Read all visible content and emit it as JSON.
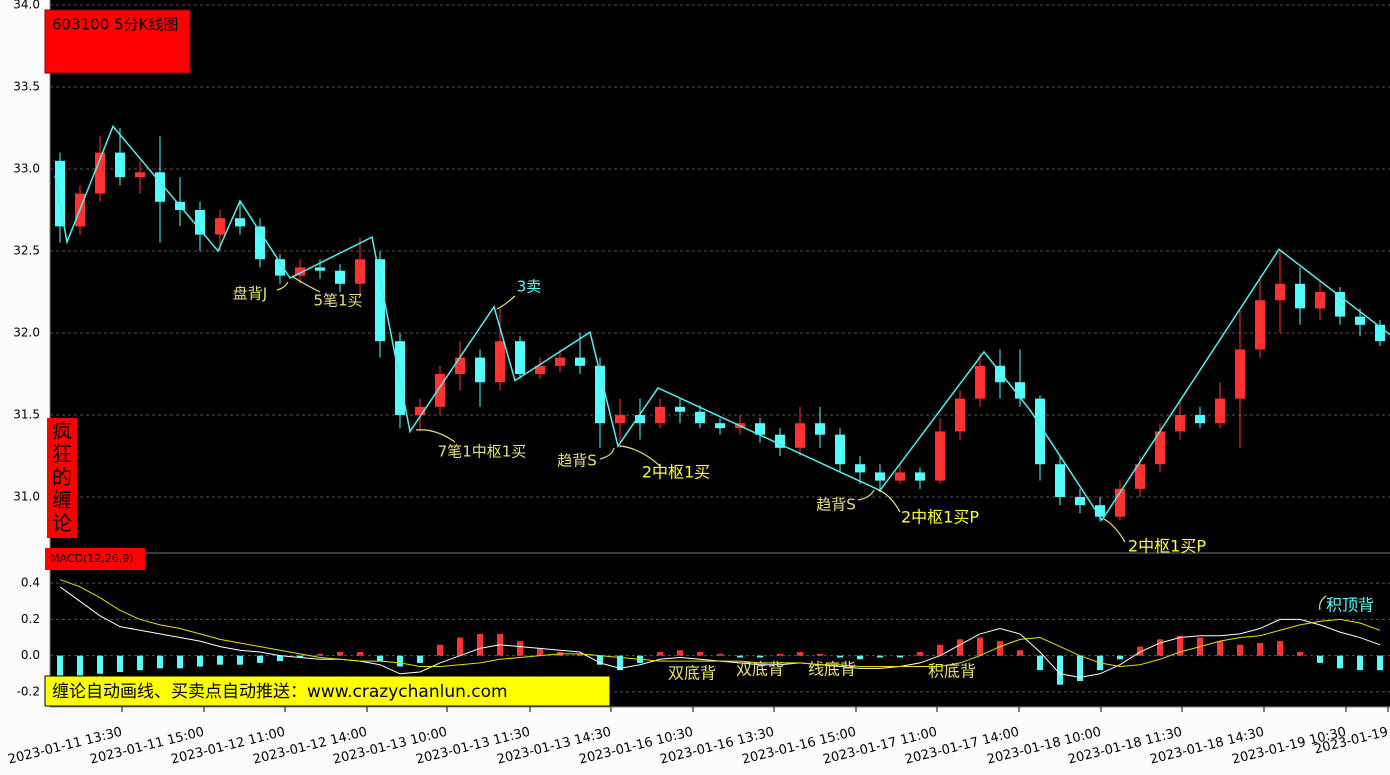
{
  "header": {
    "title": "603100 5分K线图",
    "side_label": "疯狂的缠论",
    "banner": "缠论自动画线、买卖点自动推送：www.crazychanlun.com"
  },
  "annotations": [
    "盘背J",
    "5笔1买",
    "3卖",
    "7笔1中枢1买",
    "趋背S",
    "2中枢1买",
    "趋背S",
    "2中枢1买P",
    "2中枢1买P",
    "双底背",
    "双底背",
    "线底背",
    "积底背",
    "积顶背"
  ],
  "chart_data": [
    {
      "type": "candlestick",
      "up_color": "#ff3232",
      "down_color": "#54fcfc",
      "grid": true,
      "xlim": [
        -0.5,
        66.5
      ],
      "ylim": [
        30.68,
        34.0
      ],
      "yticks": [
        {
          "value": 31,
          "label": "31.0"
        },
        31.5,
        {
          "value": 32,
          "label": "32.0"
        },
        32.5,
        {
          "value": 33,
          "label": "33.0"
        },
        33.5,
        {
          "value": 34,
          "label": "34.0"
        }
      ],
      "open": [
        33.05,
        32.65,
        32.85,
        33.1,
        32.95,
        32.98,
        32.8,
        32.75,
        32.6,
        32.7,
        32.65,
        32.45,
        32.35,
        32.4,
        32.38,
        32.3,
        32.45,
        31.95,
        31.5,
        31.55,
        31.75,
        31.85,
        31.7,
        31.95,
        31.75,
        31.8,
        31.85,
        31.8,
        31.45,
        31.5,
        31.45,
        31.55,
        31.52,
        31.45,
        31.42,
        31.45,
        31.38,
        31.3,
        31.45,
        31.38,
        31.2,
        31.15,
        31.1,
        31.15,
        31.1,
        31.4,
        31.6,
        31.8,
        31.7,
        31.6,
        31.2,
        31.0,
        30.95,
        30.88,
        31.05,
        31.2,
        31.4,
        31.5,
        31.45,
        31.6,
        31.9,
        32.2,
        32.3,
        32.15,
        32.25,
        32.1,
        32.05
      ],
      "high": [
        33.1,
        32.9,
        33.2,
        33.25,
        33.05,
        33.2,
        32.95,
        32.8,
        32.75,
        32.8,
        32.7,
        32.48,
        32.45,
        32.45,
        32.42,
        32.58,
        32.5,
        32.0,
        31.6,
        31.8,
        31.95,
        31.9,
        32.15,
        31.98,
        31.85,
        31.9,
        32.0,
        31.85,
        31.6,
        31.6,
        31.6,
        31.6,
        31.56,
        31.48,
        31.5,
        31.48,
        31.42,
        31.55,
        31.55,
        31.42,
        31.25,
        31.2,
        31.2,
        31.18,
        31.48,
        31.65,
        31.88,
        31.9,
        31.9,
        31.62,
        31.25,
        31.05,
        31.0,
        31.1,
        31.25,
        31.45,
        31.6,
        31.55,
        31.7,
        32.15,
        32.35,
        32.5,
        32.4,
        32.32,
        32.28,
        32.15,
        32.08
      ],
      "low": [
        32.55,
        32.6,
        32.8,
        32.9,
        32.85,
        32.55,
        32.65,
        32.5,
        32.5,
        32.6,
        32.4,
        32.3,
        32.3,
        32.33,
        32.25,
        32.22,
        31.85,
        31.42,
        31.4,
        31.5,
        31.65,
        31.55,
        31.65,
        31.72,
        31.72,
        31.76,
        31.75,
        31.3,
        31.3,
        31.35,
        31.42,
        31.45,
        31.42,
        31.38,
        31.38,
        31.33,
        31.25,
        31.25,
        31.3,
        31.15,
        31.08,
        31.03,
        31.08,
        31.05,
        31.08,
        31.35,
        31.55,
        31.6,
        31.55,
        31.1,
        30.95,
        30.9,
        30.85,
        30.86,
        31.0,
        31.15,
        31.35,
        31.42,
        31.42,
        31.3,
        31.85,
        32.0,
        32.05,
        32.08,
        32.05,
        31.98,
        31.92
      ],
      "close": [
        32.65,
        32.85,
        33.1,
        32.95,
        32.98,
        32.8,
        32.75,
        32.6,
        32.7,
        32.65,
        32.45,
        32.35,
        32.4,
        32.38,
        32.3,
        32.45,
        31.95,
        31.5,
        31.55,
        31.75,
        31.85,
        31.7,
        31.95,
        31.75,
        31.8,
        31.85,
        31.8,
        31.45,
        31.5,
        31.45,
        31.55,
        31.52,
        31.45,
        31.42,
        31.45,
        31.38,
        31.3,
        31.45,
        31.38,
        31.2,
        31.15,
        31.1,
        31.15,
        31.1,
        31.4,
        31.6,
        31.8,
        31.7,
        31.6,
        31.2,
        31.0,
        30.95,
        30.88,
        31.05,
        31.2,
        31.4,
        31.5,
        31.45,
        31.6,
        31.9,
        32.2,
        32.3,
        32.15,
        32.25,
        32.1,
        32.05,
        31.95
      ],
      "strokes": {
        "color": "#4ff0f0",
        "x": [
          -0.25,
          0.35,
          2.65,
          7.9,
          9.0,
          11.5,
          15.6,
          17.5,
          21.7,
          22.75,
          26.5,
          27.9,
          29.9,
          41.0,
          46.2,
          48.5,
          52.1,
          60.95,
          66.5
        ],
        "y": [
          32.96,
          32.555,
          33.26,
          32.5,
          32.805,
          32.335,
          32.585,
          31.4,
          32.16,
          31.71,
          32.005,
          31.31,
          31.665,
          31.04,
          31.885,
          31.53,
          30.86,
          32.51,
          31.99
        ]
      }
    },
    {
      "type": "macd",
      "title": "MACD(12,26,9)",
      "grid": true,
      "xlim": [
        -0.5,
        66.5
      ],
      "ylim": [
        -0.28,
        0.55
      ],
      "yticks": [
        -0.2,
        {
          "value": 0,
          "label": "0.0"
        },
        0.2,
        0.4
      ],
      "xticks": [
        {
          "value": 3.1,
          "label": "2023-01-11 13:30"
        },
        {
          "value": 7.2,
          "label": "2023-01-11 15:00"
        },
        {
          "value": 11.25,
          "label": "2023-01-12 11:00"
        },
        {
          "value": 15.35,
          "label": "2023-01-12 14:00"
        },
        {
          "value": 19.35,
          "label": "2023-01-13 10:00"
        },
        {
          "value": 23.5,
          "label": "2023-01-13 11:30"
        },
        {
          "value": 27.55,
          "label": "2023-01-13 14:30"
        },
        {
          "value": 31.65,
          "label": "2023-01-16 10:30"
        },
        {
          "value": 35.7,
          "label": "2023-01-16 13:30"
        },
        {
          "value": 39.8,
          "label": "2023-01-16 15:00"
        },
        {
          "value": 43.85,
          "label": "2023-01-17 11:00"
        },
        {
          "value": 47.95,
          "label": "2023-01-17 14:00"
        },
        {
          "value": 52.05,
          "label": "2023-01-18 10:00"
        },
        {
          "value": 56.1,
          "label": "2023-01-18 11:30"
        },
        {
          "value": 60.2,
          "label": "2023-01-18 14:30"
        },
        {
          "value": 64.3,
          "label": "2023-01-19 10:30"
        },
        {
          "value": 66.4,
          "label": "2023-01-19"
        }
      ],
      "histogram": {
        "pos_color": "#ff3232",
        "neg_color": "#54fcfc",
        "values": [
          -0.12,
          -0.11,
          -0.1,
          -0.09,
          -0.08,
          -0.07,
          -0.07,
          -0.06,
          -0.05,
          -0.05,
          -0.04,
          -0.03,
          -0.01,
          0.01,
          0.02,
          0.02,
          -0.03,
          -0.06,
          -0.04,
          0.06,
          0.1,
          0.12,
          0.12,
          0.08,
          0.04,
          0.02,
          0.01,
          -0.05,
          -0.08,
          -0.04,
          0.02,
          0.03,
          0.02,
          0.01,
          -0.01,
          -0.01,
          0.01,
          0.02,
          0.01,
          -0.01,
          -0.02,
          -0.01,
          -0.01,
          0.02,
          0.06,
          0.09,
          0.1,
          0.08,
          0.03,
          -0.08,
          -0.16,
          -0.14,
          -0.08,
          -0.02,
          0.05,
          0.09,
          0.11,
          0.1,
          0.08,
          0.06,
          0.07,
          0.08,
          0.02,
          -0.04,
          -0.07,
          -0.08,
          -0.08
        ]
      },
      "series": [
        {
          "color": "#ffffff",
          "values": [
            0.38,
            0.3,
            0.22,
            0.16,
            0.14,
            0.12,
            0.1,
            0.08,
            0.05,
            0.03,
            0.02,
            0.0,
            -0.01,
            -0.02,
            -0.02,
            -0.03,
            -0.05,
            -0.1,
            -0.09,
            -0.04,
            0.0,
            0.04,
            0.06,
            0.05,
            0.04,
            0.03,
            0.02,
            -0.04,
            -0.07,
            -0.05,
            -0.02,
            -0.01,
            -0.02,
            -0.03,
            -0.04,
            -0.05,
            -0.05,
            -0.04,
            -0.05,
            -0.06,
            -0.07,
            -0.07,
            -0.06,
            -0.04,
            0.0,
            0.06,
            0.12,
            0.15,
            0.12,
            0.02,
            -0.1,
            -0.12,
            -0.1,
            -0.05,
            0.02,
            0.07,
            0.1,
            0.11,
            0.11,
            0.12,
            0.15,
            0.2,
            0.2,
            0.17,
            0.13,
            0.1,
            0.06
          ]
        },
        {
          "color": "#e8e000",
          "values": [
            0.42,
            0.38,
            0.32,
            0.25,
            0.2,
            0.17,
            0.15,
            0.12,
            0.09,
            0.07,
            0.05,
            0.03,
            0.01,
            -0.01,
            -0.02,
            -0.03,
            -0.03,
            -0.04,
            -0.06,
            -0.06,
            -0.05,
            -0.04,
            -0.02,
            -0.01,
            0.0,
            0.01,
            0.01,
            0.0,
            -0.01,
            -0.02,
            -0.03,
            -0.03,
            -0.03,
            -0.03,
            -0.03,
            -0.04,
            -0.04,
            -0.04,
            -0.05,
            -0.05,
            -0.06,
            -0.06,
            -0.06,
            -0.06,
            -0.06,
            -0.04,
            0.0,
            0.05,
            0.09,
            0.1,
            0.05,
            0.0,
            -0.04,
            -0.06,
            -0.05,
            -0.02,
            0.02,
            0.05,
            0.08,
            0.1,
            0.11,
            0.14,
            0.17,
            0.19,
            0.2,
            0.18,
            0.14
          ]
        }
      ]
    }
  ]
}
